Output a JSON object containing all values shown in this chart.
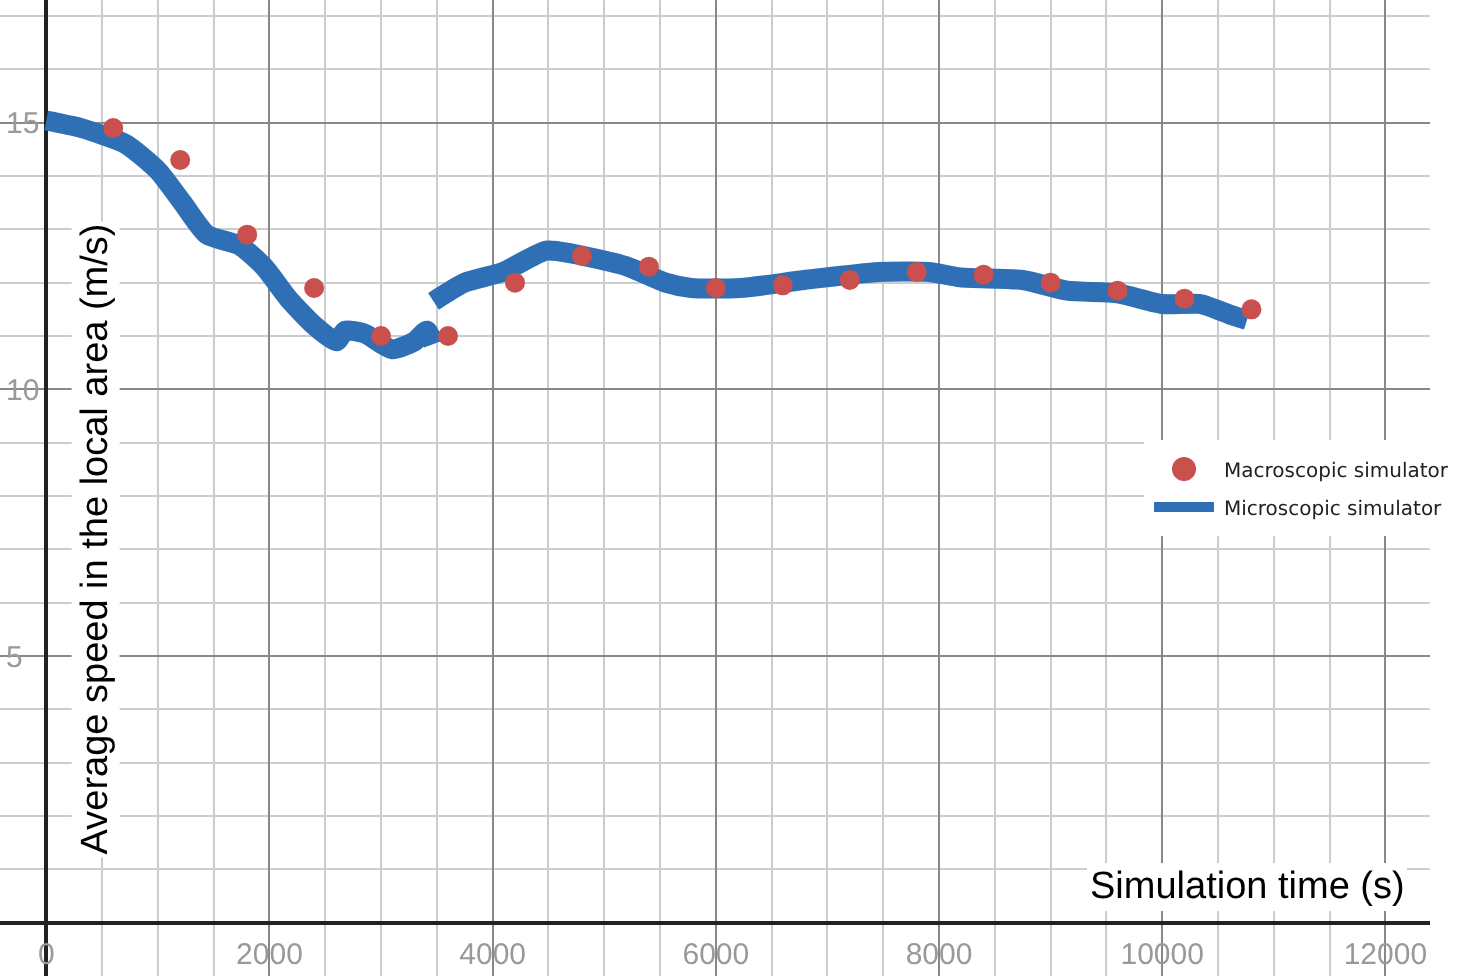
{
  "chart_data": {
    "type": "line",
    "xlabel": "Simulation time (s)",
    "ylabel": "Average speed in the local area (m/s)",
    "xlim": [
      -415,
      12400
    ],
    "ylim": [
      -1,
      17.3
    ],
    "xticks": [
      0,
      2000,
      4000,
      6000,
      8000,
      10000,
      12000
    ],
    "yticks": [
      {
        "value": 0,
        "label": null
      },
      5,
      10,
      15
    ],
    "grid": true,
    "legend": "right",
    "series": [
      {
        "name": "Macroscopic simulator",
        "type": "scatter",
        "marker": "circle",
        "color": "#c9504c",
        "x": [
          600,
          1200,
          1800,
          2400,
          3000,
          3600,
          4200,
          4800,
          5400,
          6000,
          6600,
          7200,
          7800,
          8400,
          9000,
          9600,
          10200,
          10800
        ],
        "values": [
          14.9,
          14.3,
          12.9,
          11.9,
          11.0,
          11.0,
          12.0,
          12.5,
          12.3,
          11.9,
          11.95,
          12.05,
          12.2,
          12.15,
          12.0,
          11.85,
          11.7,
          11.5
        ]
      },
      {
        "name": "Microscopic simulator",
        "color": "#2e6fb5",
        "x": [
          0,
          310,
          710,
          1000,
          1220,
          1440,
          1730,
          1950,
          2170,
          2400,
          2600,
          2680,
          2850,
          3100,
          3300,
          3410,
          3470
        ],
        "values": [
          15.04,
          14.9,
          14.6,
          14.1,
          13.5,
          12.9,
          12.7,
          12.3,
          11.7,
          11.2,
          10.9,
          11.1,
          11.05,
          10.75,
          10.9,
          11.1,
          10.85
        ]
      },
      {
        "color": "#2e6fb5",
        "x": [
          3470,
          3750,
          4090,
          4480,
          4700,
          5210,
          5550,
          5780,
          6220,
          6790,
          7460,
          7910,
          8190,
          8750,
          9150,
          9600,
          10000,
          10340,
          10610,
          10760
        ],
        "values": [
          11.65,
          12.0,
          12.2,
          12.6,
          12.55,
          12.3,
          12.0,
          11.9,
          11.9,
          12.05,
          12.2,
          12.2,
          12.1,
          12.05,
          11.85,
          11.8,
          11.6,
          11.6,
          11.4,
          11.3
        ]
      }
    ]
  }
}
